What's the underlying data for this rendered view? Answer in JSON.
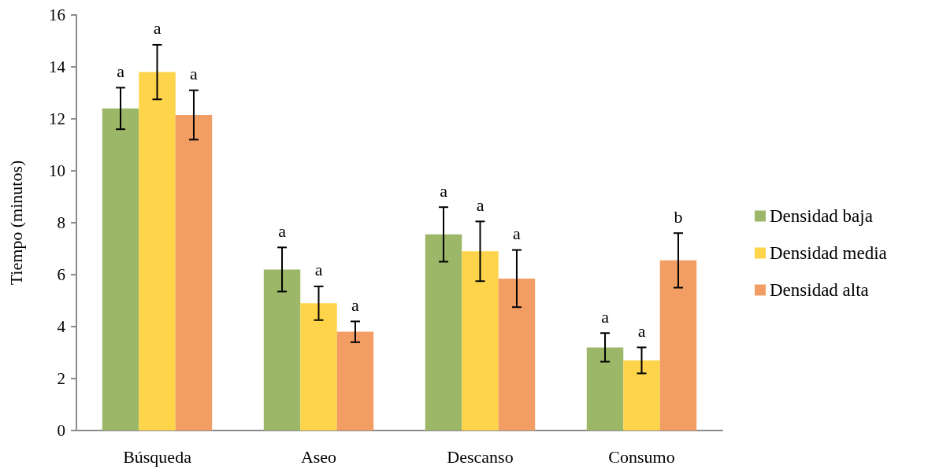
{
  "chart_data": {
    "type": "bar",
    "ylabel": "Tiempo (minutos)",
    "categories": [
      "Búsqueda",
      "Aseo",
      "Descanso",
      "Consumo"
    ],
    "series": [
      {
        "name": "Densidad baja",
        "color": "#9cb767",
        "values": [
          12.4,
          6.2,
          7.55,
          3.2
        ],
        "errors": [
          0.8,
          0.85,
          1.05,
          0.55
        ],
        "value_labels": [
          "a",
          "a",
          "a",
          "a"
        ]
      },
      {
        "name": "Densidad media",
        "color": "#fdd44a",
        "values": [
          13.8,
          4.9,
          6.9,
          2.7
        ],
        "errors": [
          1.05,
          0.65,
          1.15,
          0.5
        ],
        "value_labels": [
          "a",
          "a",
          "a",
          "a"
        ]
      },
      {
        "name": "Densidad alta",
        "color": "#f19d63",
        "values": [
          12.15,
          3.8,
          5.85,
          6.55
        ],
        "errors": [
          0.95,
          0.4,
          1.1,
          1.05
        ],
        "value_labels": [
          "a",
          "a",
          "a",
          "b"
        ]
      }
    ],
    "ylim": [
      0,
      16
    ],
    "yticks": [
      0,
      2,
      4,
      6,
      8,
      10,
      12,
      14,
      16
    ],
    "grid": false,
    "legend": "right"
  }
}
